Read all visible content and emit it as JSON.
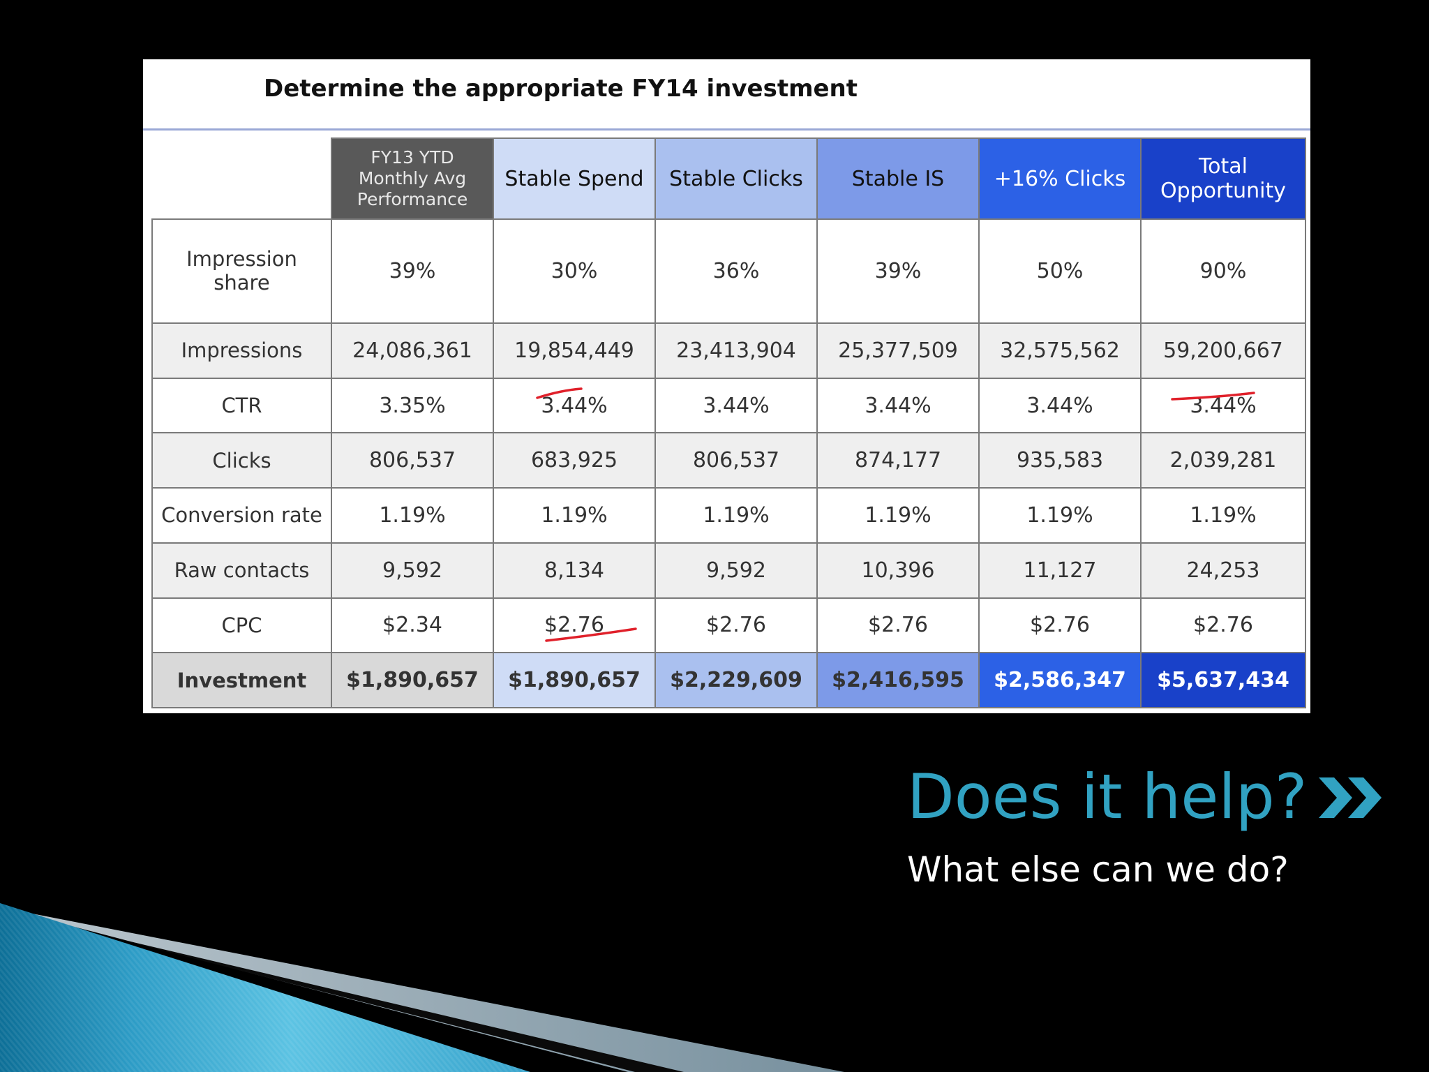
{
  "slide": {
    "heading": "Does it help?",
    "subheading": "What else can we do?",
    "icons": [
      "double-chevron-right-icon"
    ],
    "colors": {
      "background": "#000000",
      "heading": "#31a2c2",
      "subheading": "#ffffff"
    }
  },
  "table": {
    "title": "Determine the appropriate FY14 investment",
    "corner_label": "",
    "columns": [
      [
        "FY13 YTD",
        "Monthly Avg",
        "Performance"
      ],
      [
        "Stable Spend"
      ],
      [
        "Stable Clicks"
      ],
      [
        "Stable IS"
      ],
      [
        "+16%  Clicks"
      ],
      [
        "Total",
        "Opportunity"
      ]
    ],
    "rows": [
      {
        "label": [
          "Impression",
          "share"
        ],
        "values": [
          "39%",
          "30%",
          "36%",
          "39%",
          "50%",
          "90%"
        ]
      },
      {
        "label": [
          "Impressions"
        ],
        "values": [
          "24,086,361",
          "19,854,449",
          "23,413,904",
          "25,377,509",
          "32,575,562",
          "59,200,667"
        ]
      },
      {
        "label": [
          "CTR"
        ],
        "values": [
          "3.35%",
          "3.44%",
          "3.44%",
          "3.44%",
          "3.44%",
          "3.44%"
        ]
      },
      {
        "label": [
          "Clicks"
        ],
        "values": [
          "806,537",
          "683,925",
          "806,537",
          "874,177",
          "935,583",
          "2,039,281"
        ]
      },
      {
        "label": [
          "Conversion rate"
        ],
        "values": [
          "1.19%",
          "1.19%",
          "1.19%",
          "1.19%",
          "1.19%",
          "1.19%"
        ]
      },
      {
        "label": [
          "Raw contacts"
        ],
        "values": [
          "9,592",
          "8,134",
          "9,592",
          "10,396",
          "11,127",
          "24,253"
        ]
      },
      {
        "label": [
          "CPC"
        ],
        "values": [
          "$2.34",
          "$2.76",
          "$2.76",
          "$2.76",
          "$2.76",
          "$2.76"
        ]
      },
      {
        "label": [
          "Investment"
        ],
        "values": [
          "$1,890,657",
          "$1,890,657",
          "$2,229,609",
          "$2,416,595",
          "$2,586,347",
          "$5,637,434"
        ]
      }
    ],
    "annotations": [
      {
        "row": "CTR",
        "column": "Stable Spend",
        "type": "red-underline"
      },
      {
        "row": "CTR",
        "column": "Total Opportunity",
        "type": "red-underline"
      },
      {
        "row": "CPC",
        "column": "Stable Spend",
        "type": "red-underline"
      }
    ],
    "colors": {
      "FY13 YTD": "#595959",
      "Stable Spend": "#cfdcf6",
      "Stable Clicks": "#aac0ef",
      "Stable IS": "#7d9ae8",
      "+16% Clicks": "#2c61e6",
      "Total Opportunity": "#1941c9",
      "annotation": "#e0202a"
    }
  }
}
